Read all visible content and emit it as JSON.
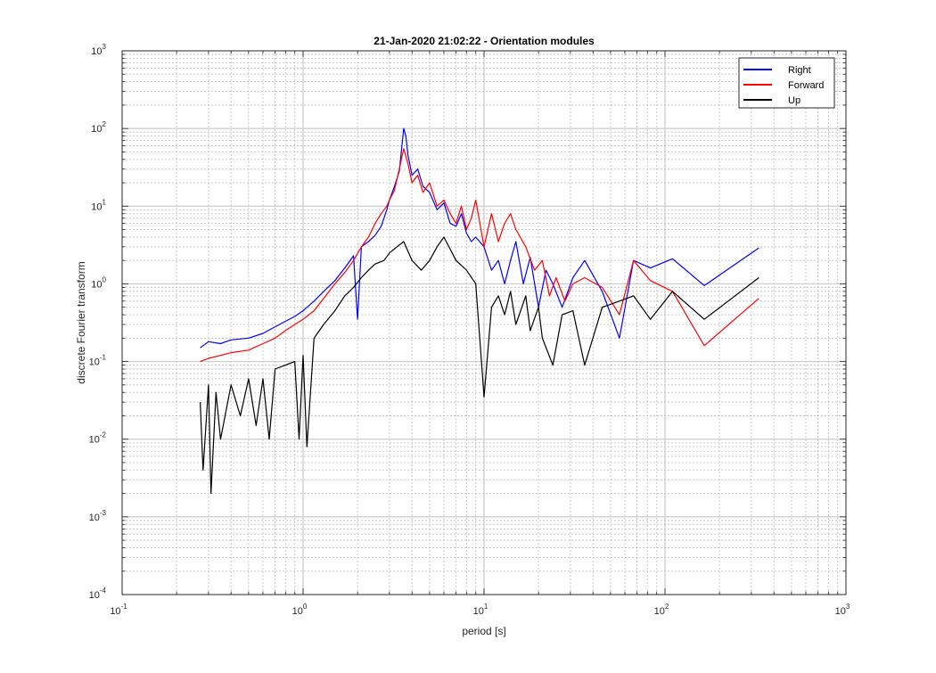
{
  "chart_data": {
    "type": "line",
    "title": "21-Jan-2020 21:02:22 - Orientation modules",
    "xlabel": "period [s]",
    "ylabel": "discrete Fourier transform",
    "xscale": "log",
    "yscale": "log",
    "xlim": [
      0.1,
      1000
    ],
    "ylim": [
      0.0001,
      1000
    ],
    "grid": true,
    "minor_grid": true,
    "legend_position": "top-right",
    "x_tick_labels": [
      {
        "base": "10",
        "exp": "-1"
      },
      {
        "base": "10",
        "exp": "0"
      },
      {
        "base": "10",
        "exp": "1"
      },
      {
        "base": "10",
        "exp": "2"
      },
      {
        "base": "10",
        "exp": "3"
      }
    ],
    "y_tick_labels": [
      {
        "base": "10",
        "exp": "-4"
      },
      {
        "base": "10",
        "exp": "-3"
      },
      {
        "base": "10",
        "exp": "-2"
      },
      {
        "base": "10",
        "exp": "-1"
      },
      {
        "base": "10",
        "exp": "0"
      },
      {
        "base": "10",
        "exp": "1"
      },
      {
        "base": "10",
        "exp": "2"
      },
      {
        "base": "10",
        "exp": "3"
      }
    ],
    "series": [
      {
        "name": "Right",
        "color": "#0000ff",
        "points": [
          [
            0.27,
            0.15
          ],
          [
            0.3,
            0.18
          ],
          [
            0.35,
            0.17
          ],
          [
            0.4,
            0.19
          ],
          [
            0.5,
            0.2
          ],
          [
            0.6,
            0.23
          ],
          [
            0.7,
            0.28
          ],
          [
            0.8,
            0.33
          ],
          [
            0.9,
            0.38
          ],
          [
            1.0,
            0.45
          ],
          [
            1.15,
            0.6
          ],
          [
            1.3,
            0.8
          ],
          [
            1.5,
            1.1
          ],
          [
            1.7,
            1.6
          ],
          [
            1.9,
            2.3
          ],
          [
            2.0,
            0.35
          ],
          [
            2.1,
            3.0
          ],
          [
            2.3,
            3.5
          ],
          [
            2.5,
            4.2
          ],
          [
            2.7,
            5.5
          ],
          [
            2.9,
            9.0
          ],
          [
            3.0,
            12
          ],
          [
            3.2,
            18
          ],
          [
            3.4,
            28
          ],
          [
            3.6,
            100
          ],
          [
            3.7,
            80
          ],
          [
            3.8,
            45
          ],
          [
            4.0,
            25
          ],
          [
            4.3,
            30
          ],
          [
            4.6,
            18
          ],
          [
            5.0,
            15
          ],
          [
            5.5,
            9
          ],
          [
            6.0,
            11
          ],
          [
            6.5,
            6
          ],
          [
            7.0,
            5.5
          ],
          [
            7.5,
            8
          ],
          [
            8.0,
            4.5
          ],
          [
            8.5,
            3.5
          ],
          [
            9.0,
            4.0
          ],
          [
            10.0,
            3.0
          ],
          [
            11.0,
            1.5
          ],
          [
            12.0,
            2.0
          ],
          [
            13.0,
            1.0
          ],
          [
            14.0,
            2.0
          ],
          [
            15.0,
            3.5
          ],
          [
            16.5,
            1.0
          ],
          [
            18.0,
            2.2
          ],
          [
            20.0,
            0.5
          ],
          [
            22.0,
            1.5
          ],
          [
            24.0,
            1.0
          ],
          [
            27.0,
            0.5
          ],
          [
            31.0,
            1.2
          ],
          [
            36.0,
            2.0
          ],
          [
            45.0,
            0.8
          ],
          [
            56.0,
            0.2
          ],
          [
            67.0,
            2.0
          ],
          [
            83.0,
            1.6
          ],
          [
            110.0,
            2.1
          ],
          [
            165.0,
            0.95
          ],
          [
            330.0,
            2.9
          ]
        ]
      },
      {
        "name": "Forward",
        "color": "#ff0000",
        "points": [
          [
            0.27,
            0.1
          ],
          [
            0.3,
            0.11
          ],
          [
            0.35,
            0.12
          ],
          [
            0.4,
            0.13
          ],
          [
            0.5,
            0.14
          ],
          [
            0.6,
            0.17
          ],
          [
            0.7,
            0.2
          ],
          [
            0.8,
            0.25
          ],
          [
            0.9,
            0.3
          ],
          [
            1.0,
            0.35
          ],
          [
            1.15,
            0.45
          ],
          [
            1.3,
            0.65
          ],
          [
            1.5,
            1.0
          ],
          [
            1.7,
            1.4
          ],
          [
            1.9,
            2.0
          ],
          [
            2.1,
            3.0
          ],
          [
            2.3,
            4.0
          ],
          [
            2.5,
            6.0
          ],
          [
            2.7,
            8.0
          ],
          [
            2.9,
            10
          ],
          [
            3.0,
            12
          ],
          [
            3.2,
            16
          ],
          [
            3.4,
            30
          ],
          [
            3.6,
            55
          ],
          [
            3.8,
            35
          ],
          [
            4.0,
            20
          ],
          [
            4.3,
            25
          ],
          [
            4.6,
            15
          ],
          [
            5.0,
            20
          ],
          [
            5.5,
            10
          ],
          [
            6.0,
            12
          ],
          [
            6.5,
            8
          ],
          [
            7.0,
            6
          ],
          [
            7.5,
            10
          ],
          [
            8.0,
            5
          ],
          [
            8.5,
            7
          ],
          [
            9.0,
            12
          ],
          [
            10.0,
            3.0
          ],
          [
            11.0,
            8.0
          ],
          [
            12.0,
            3.5
          ],
          [
            13.0,
            6.0
          ],
          [
            14.0,
            8.0
          ],
          [
            15.0,
            5.0
          ],
          [
            17.0,
            3.0
          ],
          [
            19.0,
            1.5
          ],
          [
            21.0,
            2.0
          ],
          [
            23.0,
            0.7
          ],
          [
            25.0,
            1.2
          ],
          [
            28.0,
            0.6
          ],
          [
            31.0,
            1.0
          ],
          [
            36.0,
            1.2
          ],
          [
            45.0,
            0.9
          ],
          [
            56.0,
            0.4
          ],
          [
            67.0,
            2.0
          ],
          [
            83.0,
            1.1
          ],
          [
            110.0,
            0.8
          ],
          [
            165.0,
            0.16
          ],
          [
            330.0,
            0.65
          ]
        ]
      },
      {
        "name": "Up",
        "color": "#000000",
        "points": [
          [
            0.27,
            0.03
          ],
          [
            0.28,
            0.004
          ],
          [
            0.3,
            0.05
          ],
          [
            0.31,
            0.002
          ],
          [
            0.33,
            0.04
          ],
          [
            0.35,
            0.01
          ],
          [
            0.4,
            0.05
          ],
          [
            0.45,
            0.02
          ],
          [
            0.5,
            0.06
          ],
          [
            0.55,
            0.015
          ],
          [
            0.6,
            0.06
          ],
          [
            0.65,
            0.01
          ],
          [
            0.7,
            0.08
          ],
          [
            0.8,
            0.09
          ],
          [
            0.9,
            0.1
          ],
          [
            0.95,
            0.01
          ],
          [
            1.0,
            0.12
          ],
          [
            1.05,
            0.008
          ],
          [
            1.15,
            0.2
          ],
          [
            1.3,
            0.3
          ],
          [
            1.5,
            0.45
          ],
          [
            1.7,
            0.7
          ],
          [
            1.9,
            0.9
          ],
          [
            2.1,
            1.2
          ],
          [
            2.3,
            1.5
          ],
          [
            2.5,
            1.8
          ],
          [
            2.8,
            2.0
          ],
          [
            3.0,
            2.5
          ],
          [
            3.3,
            3.0
          ],
          [
            3.6,
            3.5
          ],
          [
            4.0,
            2.0
          ],
          [
            4.5,
            1.5
          ],
          [
            5.0,
            2.0
          ],
          [
            5.5,
            3.0
          ],
          [
            6.0,
            4.0
          ],
          [
            7.0,
            2.0
          ],
          [
            8.0,
            1.5
          ],
          [
            9.0,
            1.0
          ],
          [
            10.0,
            0.035
          ],
          [
            11.0,
            0.5
          ],
          [
            12.0,
            0.7
          ],
          [
            13.0,
            0.4
          ],
          [
            14.0,
            0.8
          ],
          [
            15.0,
            0.3
          ],
          [
            17.0,
            0.7
          ],
          [
            18.0,
            0.25
          ],
          [
            20.0,
            0.5
          ],
          [
            21.0,
            0.2
          ],
          [
            24.0,
            0.09
          ],
          [
            27.0,
            0.4
          ],
          [
            31.0,
            0.45
          ],
          [
            36.0,
            0.09
          ],
          [
            45.0,
            0.5
          ],
          [
            56.0,
            0.6
          ],
          [
            67.0,
            0.7
          ],
          [
            83.0,
            0.35
          ],
          [
            110.0,
            0.8
          ],
          [
            165.0,
            0.35
          ],
          [
            330.0,
            1.2
          ]
        ]
      }
    ]
  }
}
